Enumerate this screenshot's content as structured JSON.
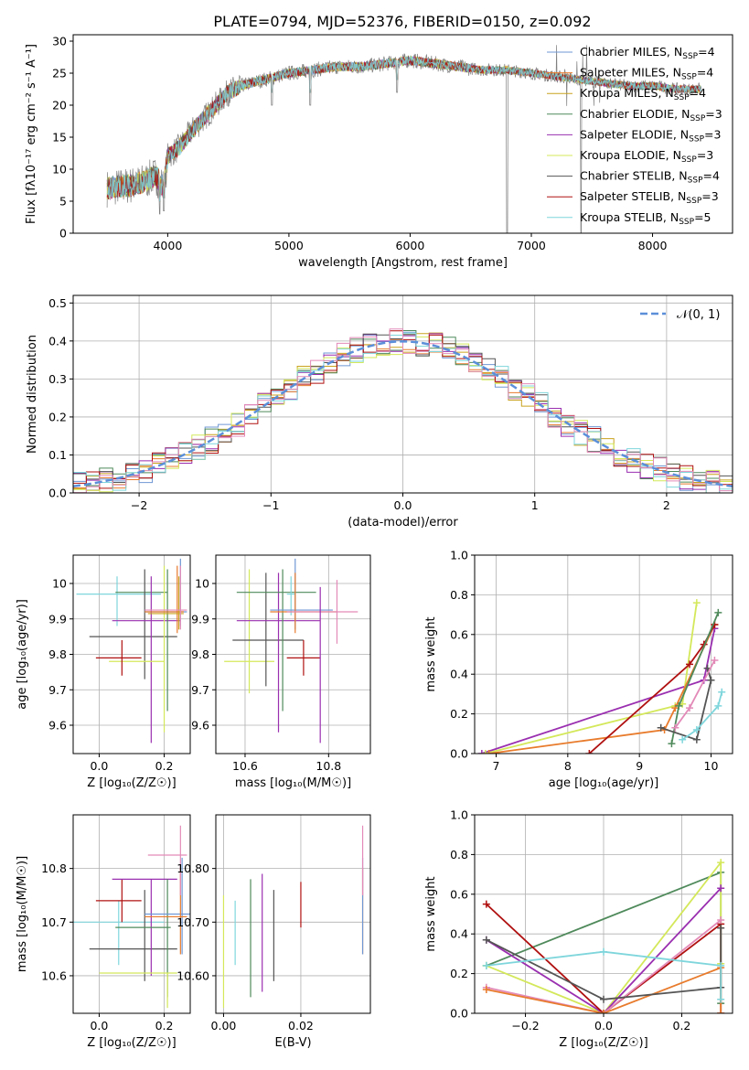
{
  "title": "PLATE=0794, MJD=52376, FIBERID=0150, z=0.092",
  "colors": {
    "Chabrier MILES": "#6f97d4",
    "Salpeter MILES": "#e87b2c",
    "Kroupa MILES": "#c9a21e",
    "Chabrier ELODIE": "#4f8a5b",
    "Salpeter ELODIE": "#9a2fb0",
    "Kroupa ELODIE": "#d4e85a",
    "Chabrier STELIB": "#555555",
    "Salpeter STELIB": "#b01010",
    "Kroupa STELIB": "#7fd6dc",
    "data": "#808080",
    "pink": "#e38ab8",
    "normal": "#5b8fd9"
  },
  "chart_data": [
    {
      "id": "spectrum",
      "type": "line",
      "xlabel": "wavelength [Angstrom, rest frame]",
      "ylabel": "Flux [fλ10⁻¹⁷ erg cm⁻² s⁻¹ A⁻¹]",
      "xlim": [
        3220,
        8660
      ],
      "ylim": [
        0,
        31
      ],
      "xticks": [
        4000,
        5000,
        6000,
        7000,
        8000
      ],
      "yticks": [
        0,
        5,
        10,
        15,
        20,
        25,
        30
      ],
      "legend_position": "top-right",
      "legend": [
        {
          "label": "Chabrier MILES, N_SSP=4",
          "main": "Chabrier MILES, N",
          "sub": "SSP",
          "tail": "=4",
          "color": "#6f97d4"
        },
        {
          "label": "Salpeter MILES, N_SSP=4",
          "main": "Salpeter MILES, N",
          "sub": "SSP",
          "tail": "=4",
          "color": "#e87b2c"
        },
        {
          "label": "Kroupa MILES, N_SSP=4",
          "main": "Kroupa MILES, N",
          "sub": "SSP",
          "tail": "=4",
          "color": "#c9a21e"
        },
        {
          "label": "Chabrier ELODIE, N_SSP=3",
          "main": "Chabrier ELODIE, N",
          "sub": "SSP",
          "tail": "=3",
          "color": "#4f8a5b"
        },
        {
          "label": "Salpeter ELODIE, N_SSP=3",
          "main": "Salpeter ELODIE, N",
          "sub": "SSP",
          "tail": "=3",
          "color": "#9a2fb0"
        },
        {
          "label": "Kroupa ELODIE, N_SSP=3",
          "main": "Kroupa ELODIE, N",
          "sub": "SSP",
          "tail": "=3",
          "color": "#d4e85a"
        },
        {
          "label": "Chabrier STELIB, N_SSP=4",
          "main": "Chabrier STELIB, N",
          "sub": "SSP",
          "tail": "=4",
          "color": "#555555"
        },
        {
          "label": "Salpeter STELIB, N_SSP=3",
          "main": "Salpeter STELIB, N",
          "sub": "SSP",
          "tail": "=3",
          "color": "#b01010"
        },
        {
          "label": "Kroupa STELIB, N_SSP=5",
          "main": "Kroupa STELIB, N",
          "sub": "SSP",
          "tail": "=5",
          "color": "#7fd6dc"
        }
      ],
      "continuum": {
        "x": [
          3500,
          3700,
          3800,
          3900,
          3970,
          4000,
          4100,
          4200,
          4300,
          4400,
          4500,
          4600,
          4800,
          5000,
          5200,
          5400,
          5600,
          5800,
          6000,
          6200,
          6400,
          6600,
          6800,
          7000,
          7200,
          7400,
          7600,
          7800,
          8000,
          8200,
          8400
        ],
        "y": [
          7,
          7.5,
          8,
          9,
          7,
          12,
          13.5,
          16,
          18,
          20,
          22,
          23,
          24,
          25,
          25.5,
          26,
          26,
          26.5,
          27,
          26.5,
          26,
          25.5,
          25.5,
          25,
          24.5,
          24,
          23.5,
          23,
          23,
          22.5,
          22.5
        ]
      },
      "dips": [
        {
          "x": 3934,
          "y": 3
        },
        {
          "x": 3969,
          "y": 3.5
        },
        {
          "x": 4861,
          "y": 20
        },
        {
          "x": 5175,
          "y": 20
        },
        {
          "x": 5892,
          "y": 22
        },
        {
          "x": 6800,
          "y": 0
        },
        {
          "x": 7410,
          "y": 0
        }
      ]
    },
    {
      "id": "residuals",
      "type": "histogram",
      "xlabel": "(data-model)/error",
      "ylabel": "Normed distribution",
      "xlim": [
        -2.5,
        2.5
      ],
      "ylim": [
        0,
        0.52
      ],
      "xticks": [
        -2,
        -1,
        0,
        1,
        2
      ],
      "yticks": [
        0.0,
        0.1,
        0.2,
        0.3,
        0.4,
        0.5
      ],
      "bin_width": 0.1,
      "legend": [
        {
          "label": "𝒩(0, 1)",
          "color": "#5b8fd9",
          "style": "dashed"
        }
      ],
      "legend_position": "top-right"
    },
    {
      "id": "age-vs-Z",
      "type": "errorbar",
      "xlabel": "Z [log₁₀(Z/Z☉)]",
      "ylabel": "age  [log₁₀(age/yr)]",
      "xlim": [
        -0.08,
        0.28
      ],
      "ylim": [
        9.52,
        10.08
      ],
      "xticks": [
        0.0,
        0.2
      ],
      "yticks": [
        9.6,
        9.7,
        9.8,
        9.9,
        10.0
      ],
      "points": [
        {
          "series": "Kroupa STELIB",
          "x": 0.06,
          "y": 9.97,
          "xl": -0.07,
          "xh": 0.19,
          "yl": 9.97,
          "yh": 9.97
        },
        {
          "series": "Kroupa STELIB",
          "x": 0.055,
          "y": 9.97,
          "xl": 0.055,
          "xh": 0.055,
          "yl": 9.88,
          "yh": 10.02
        },
        {
          "series": "Chabrier ELODIE",
          "x": 0.13,
          "y": 9.975,
          "xl": 0.05,
          "xh": 0.21,
          "yl": 9.975,
          "yh": 9.975
        },
        {
          "series": "Chabrier STELIB",
          "x": 0.14,
          "y": 9.85,
          "xl": -0.03,
          "xh": 0.24,
          "yl": 9.73,
          "yh": 10.04
        },
        {
          "series": "Salpeter ELODIE",
          "x": 0.16,
          "y": 9.895,
          "xl": 0.04,
          "xh": 0.25,
          "yl": 9.55,
          "yh": 10.02
        },
        {
          "series": "Kroupa ELODIE",
          "x": 0.2,
          "y": 9.78,
          "xl": 0.03,
          "xh": 0.2,
          "yl": 9.58,
          "yh": 10.05
        },
        {
          "series": "Chabrier ELODIE",
          "x": 0.21,
          "y": 9.8,
          "xl": 0.21,
          "xh": 0.21,
          "yl": 9.64,
          "yh": 10.04
        },
        {
          "series": "Chabrier MILES",
          "x": 0.25,
          "y": 9.92,
          "xl": 0.14,
          "xh": 0.27,
          "yl": 9.88,
          "yh": 10.07
        },
        {
          "series": "Salpeter MILES",
          "x": 0.24,
          "y": 9.92,
          "xl": 0.14,
          "xh": 0.26,
          "yl": 9.86,
          "yh": 10.05
        },
        {
          "series": "Kroupa MILES",
          "x": 0.245,
          "y": 9.915,
          "xl": 0.15,
          "xh": 0.26,
          "yl": 9.87,
          "yh": 10.02
        },
        {
          "series": "pink",
          "x": 0.25,
          "y": 9.925,
          "xl": 0.14,
          "xh": 0.27,
          "yl": 9.87,
          "yh": 10.05
        },
        {
          "series": "Salpeter STELIB",
          "x": 0.07,
          "y": 9.79,
          "xl": -0.01,
          "xh": 0.13,
          "yl": 9.74,
          "yh": 9.84
        }
      ]
    },
    {
      "id": "age-vs-mass",
      "type": "errorbar",
      "xlabel": "mass [log₁₀(M/M☉)]",
      "ylabel": "",
      "xlim": [
        10.53,
        10.9
      ],
      "ylim": [
        9.52,
        10.08
      ],
      "xticks": [
        10.6,
        10.8
      ],
      "yticks": [
        9.6,
        9.7,
        9.8,
        9.9,
        10.0
      ],
      "points": [
        {
          "series": "Kroupa ELODIE",
          "x": 10.61,
          "y": 9.78,
          "xl": 10.55,
          "xh": 10.67,
          "yl": 9.69,
          "yh": 10.04
        },
        {
          "series": "Chabrier STELIB",
          "x": 10.65,
          "y": 9.84,
          "xl": 10.57,
          "xh": 10.74,
          "yl": 9.71,
          "yh": 10.03
        },
        {
          "series": "Salpeter ELODIE",
          "x": 10.68,
          "y": 9.895,
          "xl": 10.58,
          "xh": 10.78,
          "yl": 9.58,
          "yh": 10.03
        },
        {
          "series": "Chabrier ELODIE",
          "x": 10.69,
          "y": 9.975,
          "xl": 10.58,
          "xh": 10.77,
          "yl": 9.64,
          "yh": 10.04
        },
        {
          "series": "Kroupa STELIB",
          "x": 10.71,
          "y": 9.97,
          "xl": 10.7,
          "xh": 10.72,
          "yl": 9.91,
          "yh": 10.02
        },
        {
          "series": "Chabrier MILES",
          "x": 10.72,
          "y": 9.925,
          "xl": 10.66,
          "xh": 10.81,
          "yl": 9.87,
          "yh": 10.07
        },
        {
          "series": "Salpeter MILES",
          "x": 10.72,
          "y": 9.92,
          "xl": 10.66,
          "xh": 10.82,
          "yl": 9.86,
          "yh": 10.03
        },
        {
          "series": "pink",
          "x": 10.82,
          "y": 9.92,
          "xl": 10.7,
          "xh": 10.87,
          "yl": 9.83,
          "yh": 10.01
        },
        {
          "series": "Salpeter STELIB",
          "x": 10.74,
          "y": 9.79,
          "xl": 10.7,
          "xh": 10.78,
          "yl": 9.74,
          "yh": 9.84
        },
        {
          "series": "Salpeter ELODIE",
          "x": 10.78,
          "y": 9.8,
          "xl": 10.78,
          "xh": 10.78,
          "yl": 9.55,
          "yh": 9.99
        }
      ]
    },
    {
      "id": "weight-vs-age",
      "type": "line",
      "xlabel": "age  [log₁₀(age/yr)]",
      "ylabel": "mass weight",
      "xlim": [
        6.7,
        10.3
      ],
      "ylim": [
        0,
        1.0
      ],
      "xticks": [
        7,
        8,
        9,
        10
      ],
      "yticks": [
        0.0,
        0.2,
        0.4,
        0.6,
        0.8,
        1.0
      ],
      "series": [
        {
          "name": "Salpeter ELODIE",
          "x": [
            6.8,
            9.9,
            10.05
          ],
          "y": [
            0.0,
            0.37,
            0.63
          ]
        },
        {
          "name": "Kroupa ELODIE",
          "x": [
            6.85,
            9.5,
            9.6,
            9.8
          ],
          "y": [
            0.0,
            0.24,
            0.25,
            0.76
          ]
        },
        {
          "name": "Salpeter MILES",
          "x": [
            6.9,
            9.35,
            9.5,
            10.05
          ],
          "y": [
            0.0,
            0.12,
            0.23,
            0.65
          ]
        },
        {
          "name": "Salpeter STELIB",
          "x": [
            8.3,
            9.7,
            9.9,
            10.05
          ],
          "y": [
            0.0,
            0.45,
            0.55,
            0.65
          ]
        },
        {
          "name": "Chabrier ELODIE",
          "x": [
            9.45,
            9.55,
            10.1
          ],
          "y": [
            0.05,
            0.24,
            0.71
          ]
        },
        {
          "name": "Chabrier STELIB",
          "x": [
            9.3,
            9.8,
            10.0,
            9.95
          ],
          "y": [
            0.13,
            0.07,
            0.37,
            0.43
          ]
        },
        {
          "name": "Kroupa STELIB",
          "x": [
            9.6,
            9.8,
            10.1,
            10.15
          ],
          "y": [
            0.07,
            0.12,
            0.24,
            0.31
          ]
        },
        {
          "name": "pink",
          "x": [
            9.5,
            9.7,
            10.05
          ],
          "y": [
            0.13,
            0.23,
            0.47
          ]
        }
      ]
    },
    {
      "id": "mass-vs-Z",
      "type": "errorbar",
      "xlabel": "Z [log₁₀(Z/Z☉)]",
      "ylabel": "mass [log₁₀(M/M☉)]",
      "xlim": [
        -0.08,
        0.28
      ],
      "ylim": [
        10.53,
        10.9
      ],
      "xticks": [
        0.0,
        0.2
      ],
      "yticks": [
        10.6,
        10.7,
        10.8
      ],
      "points": [
        {
          "series": "Kroupa STELIB",
          "x": 0.06,
          "y": 10.7,
          "xl": -0.08,
          "xh": 0.2,
          "yl": 10.7,
          "yh": 10.7
        },
        {
          "series": "Kroupa STELIB",
          "x": 0.06,
          "y": 10.7,
          "xl": 0.06,
          "xh": 0.06,
          "yl": 10.62,
          "yh": 10.74
        },
        {
          "series": "Salpeter STELIB",
          "x": 0.07,
          "y": 10.74,
          "xl": -0.01,
          "xh": 0.13,
          "yl": 10.7,
          "yh": 10.78
        },
        {
          "series": "Chabrier STELIB",
          "x": 0.14,
          "y": 10.65,
          "xl": -0.03,
          "xh": 0.24,
          "yl": 10.59,
          "yh": 10.76
        },
        {
          "series": "Salpeter ELODIE",
          "x": 0.16,
          "y": 10.78,
          "xl": 0.04,
          "xh": 0.24,
          "yl": 10.6,
          "yh": 10.78
        },
        {
          "series": "Chabrier ELODIE",
          "x": 0.21,
          "y": 10.69,
          "xl": 0.05,
          "xh": 0.22,
          "yl": 10.56,
          "yh": 10.78
        },
        {
          "series": "Kroupa ELODIE",
          "x": 0.21,
          "y": 10.605,
          "xl": 0.0,
          "xh": 0.24,
          "yl": 10.54,
          "yh": 10.605
        },
        {
          "series": "Chabrier MILES",
          "x": 0.255,
          "y": 10.715,
          "xl": 0.14,
          "xh": 0.28,
          "yl": 10.64,
          "yh": 10.82
        },
        {
          "series": "Salpeter MILES",
          "x": 0.25,
          "y": 10.71,
          "xl": 0.14,
          "xh": 0.27,
          "yl": 10.64,
          "yh": 10.8
        },
        {
          "series": "pink",
          "x": 0.25,
          "y": 10.825,
          "xl": 0.15,
          "xh": 0.27,
          "yl": 10.75,
          "yh": 10.88
        }
      ]
    },
    {
      "id": "mass-vs-ebv",
      "type": "errorbar",
      "xlabel": "E(B-V)",
      "ylabel": "",
      "xlim": [
        -0.002,
        0.038
      ],
      "ylim": [
        10.53,
        10.9
      ],
      "xticks": [
        0.0,
        0.02
      ],
      "yticks": [
        10.6,
        10.7,
        10.8
      ],
      "points": [
        {
          "series": "Kroupa ELODIE",
          "x": 0.0,
          "y": 10.6,
          "xl": 0.0,
          "xh": 0.0,
          "yl": 10.54,
          "yh": 10.75
        },
        {
          "series": "Kroupa STELIB",
          "x": 0.003,
          "y": 10.68,
          "xl": 0.003,
          "xh": 0.003,
          "yl": 10.62,
          "yh": 10.74
        },
        {
          "series": "Chabrier ELODIE",
          "x": 0.007,
          "y": 10.69,
          "xl": 0.007,
          "xh": 0.007,
          "yl": 10.56,
          "yh": 10.78
        },
        {
          "series": "Salpeter ELODIE",
          "x": 0.01,
          "y": 10.69,
          "xl": 0.01,
          "xh": 0.01,
          "yl": 10.57,
          "yh": 10.79
        },
        {
          "series": "Chabrier STELIB",
          "x": 0.013,
          "y": 10.68,
          "xl": 0.013,
          "xh": 0.013,
          "yl": 10.59,
          "yh": 10.76
        },
        {
          "series": "Salpeter STELIB",
          "x": 0.02,
          "y": 10.735,
          "xl": 0.02,
          "xh": 0.02,
          "yl": 10.69,
          "yh": 10.775
        },
        {
          "series": "Salpeter MILES",
          "x": 0.036,
          "y": 10.72,
          "xl": 0.036,
          "xh": 0.036,
          "yl": 10.64,
          "yh": 10.8
        },
        {
          "series": "Chabrier MILES",
          "x": 0.036,
          "y": 10.72,
          "xl": 0.036,
          "xh": 0.036,
          "yl": 10.64,
          "yh": 10.82
        },
        {
          "series": "pink",
          "x": 0.036,
          "y": 10.82,
          "xl": 0.036,
          "xh": 0.036,
          "yl": 10.75,
          "yh": 10.88
        }
      ]
    },
    {
      "id": "weight-vs-Z",
      "type": "line",
      "xlabel": "Z [log₁₀(Z/Z☉)]",
      "ylabel": "mass weight",
      "xlim": [
        -0.33,
        0.33
      ],
      "ylim": [
        0,
        1.0
      ],
      "xticks": [
        -0.2,
        0.0,
        0.2
      ],
      "yticks": [
        0.0,
        0.2,
        0.4,
        0.6,
        0.8,
        1.0
      ],
      "series": [
        {
          "name": "Chabrier ELODIE",
          "x": [
            -0.3,
            0.3,
            0.3
          ],
          "y": [
            0.24,
            0.71,
            0.05
          ]
        },
        {
          "name": "Kroupa ELODIE",
          "x": [
            -0.3,
            0.0,
            0.3,
            0.3
          ],
          "y": [
            0.24,
            0.0,
            0.76,
            0.25
          ]
        },
        {
          "name": "Salpeter ELODIE",
          "x": [
            -0.3,
            0.0,
            0.3
          ],
          "y": [
            0.37,
            0.0,
            0.63
          ]
        },
        {
          "name": "Salpeter STELIB",
          "x": [
            -0.3,
            0.0,
            0.3,
            0.3
          ],
          "y": [
            0.55,
            0.0,
            0.45,
            0.0
          ]
        },
        {
          "name": "pink",
          "x": [
            -0.3,
            0.0,
            0.3
          ],
          "y": [
            0.13,
            0.0,
            0.47
          ]
        },
        {
          "name": "Salpeter MILES",
          "x": [
            -0.3,
            0.0,
            0.3,
            0.3
          ],
          "y": [
            0.12,
            0.0,
            0.23,
            0.0
          ]
        },
        {
          "name": "Chabrier STELIB",
          "x": [
            -0.3,
            0.0,
            0.3,
            0.3
          ],
          "y": [
            0.37,
            0.07,
            0.13,
            0.43
          ]
        },
        {
          "name": "Kroupa STELIB",
          "x": [
            -0.3,
            0.0,
            0.3,
            0.3
          ],
          "y": [
            0.24,
            0.31,
            0.24,
            0.07
          ]
        }
      ]
    }
  ]
}
